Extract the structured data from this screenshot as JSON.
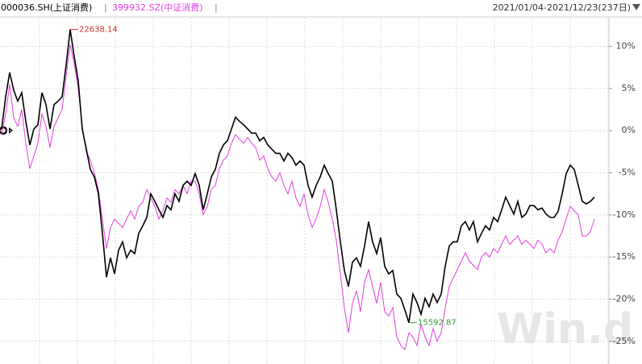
{
  "chart_data": {
    "type": "line",
    "date_range": "2021/01/04-2021/12/23(237日)",
    "separator": "|",
    "watermark": "Win.d",
    "annotations": [
      "22638.14",
      "15592.87"
    ],
    "ylim": [
      -27.7,
      13.4
    ],
    "yticks": [
      {
        "value": 10,
        "label": "10%"
      },
      {
        "value": 5,
        "label": "5%"
      },
      {
        "value": 0,
        "label": "0%"
      },
      {
        "value": -5,
        "label": "-5%"
      },
      {
        "value": -10,
        "label": "-10%"
      },
      {
        "value": -15,
        "label": "-15%"
      },
      {
        "value": -20,
        "label": "-20%"
      },
      {
        "value": -25,
        "label": "-25%"
      }
    ],
    "grid": true,
    "series": [
      {
        "name": "000036.SH(上证消费)",
        "color": "#000000",
        "values": [
          0.2,
          4.0,
          6.9,
          4.8,
          3.5,
          4.5,
          1.1,
          -1.7,
          0.2,
          0.7,
          4.5,
          3.1,
          0.2,
          3.1,
          3.5,
          4.0,
          7.8,
          12.0,
          8.8,
          5.9,
          0.2,
          -2.2,
          -4.6,
          -5.5,
          -7.5,
          -12.2,
          -17.4,
          -15.1,
          -17.0,
          -14.2,
          -13.2,
          -15.1,
          -14.2,
          -14.6,
          -12.2,
          -11.3,
          -10.3,
          -7.5,
          -8.4,
          -9.4,
          -10.3,
          -8.9,
          -9.4,
          -7.5,
          -8.4,
          -6.5,
          -6.0,
          -6.5,
          -5.1,
          -6.5,
          -9.4,
          -7.5,
          -5.5,
          -4.6,
          -2.7,
          -1.7,
          -1.2,
          0.2,
          1.6,
          1.1,
          0.7,
          0.2,
          -0.3,
          -0.3,
          -1.2,
          -0.8,
          -1.7,
          -2.2,
          -2.7,
          -2.7,
          -3.6,
          -2.7,
          -3.2,
          -4.1,
          -3.6,
          -4.1,
          -6.5,
          -7.9,
          -6.5,
          -5.5,
          -4.1,
          -5.1,
          -6.0,
          -9.4,
          -13.2,
          -16.6,
          -18.5,
          -15.6,
          -15.1,
          -16.1,
          -13.7,
          -10.8,
          -13.2,
          -14.6,
          -12.7,
          -16.1,
          -17.0,
          -16.6,
          -19.4,
          -19.9,
          -21.3,
          -22.8,
          -19.4,
          -20.4,
          -21.8,
          -19.9,
          -20.9,
          -19.4,
          -20.4,
          -19.4,
          -16.1,
          -13.7,
          -13.2,
          -13.2,
          -11.3,
          -10.8,
          -11.8,
          -10.8,
          -13.2,
          -12.2,
          -11.3,
          -11.8,
          -10.3,
          -10.8,
          -9.4,
          -7.9,
          -8.9,
          -9.9,
          -8.4,
          -10.3,
          -9.9,
          -8.9,
          -8.9,
          -9.4,
          -9.2,
          -9.9,
          -10.3,
          -10.3,
          -9.6,
          -7.5,
          -5.1,
          -4.1,
          -4.6,
          -6.5,
          -8.4,
          -8.7,
          -8.4,
          -7.9
        ]
      },
      {
        "name": "399932.SZ(中证消费)",
        "color": "#e040e0",
        "values": [
          -0.5,
          2.0,
          5.5,
          1.5,
          0.5,
          2.5,
          -1.5,
          -4.5,
          -3.0,
          -1.5,
          2.0,
          0.5,
          -2.0,
          0.5,
          1.5,
          2.5,
          6.5,
          10.2,
          8.0,
          5.0,
          0.5,
          -2.5,
          -3.5,
          -5.0,
          -7.0,
          -10.5,
          -14.0,
          -11.5,
          -10.5,
          -11.0,
          -11.5,
          -10.5,
          -9.5,
          -10.5,
          -9.0,
          -8.5,
          -7.0,
          -8.0,
          -9.0,
          -10.5,
          -9.5,
          -8.0,
          -8.5,
          -7.0,
          -7.5,
          -6.5,
          -7.5,
          -6.0,
          -6.0,
          -7.5,
          -10.0,
          -9.0,
          -7.0,
          -6.5,
          -4.5,
          -3.5,
          -3.0,
          -1.5,
          -0.5,
          -1.0,
          -1.5,
          -0.8,
          -1.5,
          -2.0,
          -3.5,
          -3.0,
          -4.5,
          -5.5,
          -6.0,
          -5.0,
          -6.5,
          -7.5,
          -6.0,
          -8.0,
          -9.0,
          -7.5,
          -10.0,
          -11.5,
          -10.5,
          -9.0,
          -7.0,
          -8.5,
          -10.5,
          -13.0,
          -17.0,
          -21.0,
          -24.0,
          -20.5,
          -19.0,
          -21.5,
          -18.0,
          -16.5,
          -18.5,
          -20.5,
          -18.0,
          -21.5,
          -22.0,
          -21.0,
          -24.5,
          -25.5,
          -26.0,
          -24.0,
          -24.5,
          -25.5,
          -23.0,
          -24.5,
          -25.5,
          -23.5,
          -25.0,
          -24.0,
          -21.0,
          -18.5,
          -17.5,
          -16.5,
          -15.5,
          -14.5,
          -15.5,
          -16.0,
          -16.5,
          -15.0,
          -14.5,
          -15.0,
          -14.0,
          -14.5,
          -13.5,
          -12.5,
          -13.5,
          -13.0,
          -12.5,
          -13.5,
          -13.0,
          -13.5,
          -14.0,
          -13.0,
          -13.5,
          -14.5,
          -14.0,
          -14.5,
          -13.0,
          -12.0,
          -10.5,
          -9.0,
          -9.5,
          -10.0,
          -12.5,
          -12.5,
          -12.0,
          -10.5
        ]
      }
    ]
  }
}
